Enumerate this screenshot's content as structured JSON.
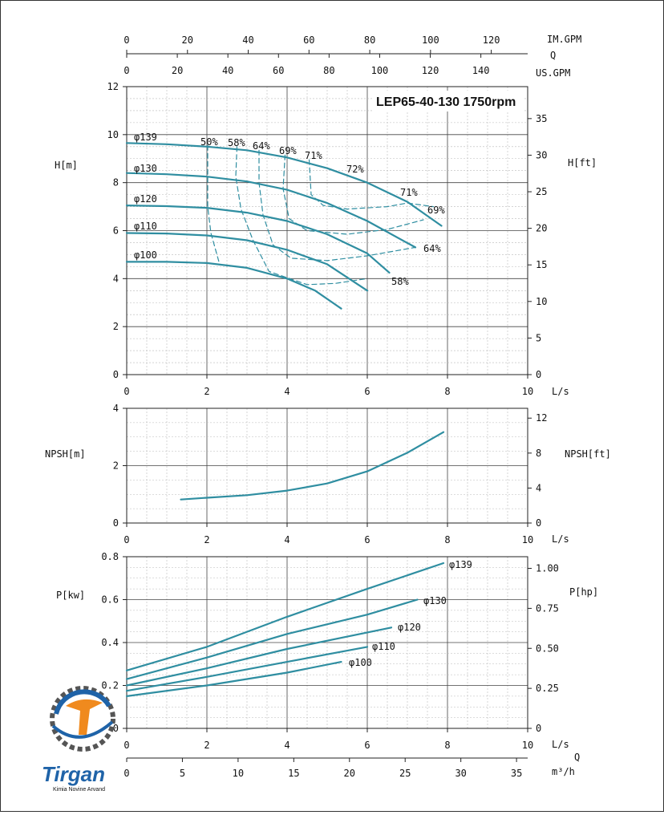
{
  "title": "LEP65-40-130 1750rpm",
  "colors": {
    "curve": "#2f8ea1",
    "logo_blue": "#1f63a8",
    "logo_orange": "#f08a1e"
  },
  "top_axes": {
    "im_gpm": {
      "label": "IM.GPM",
      "ticks": [
        "0",
        "20",
        "40",
        "60",
        "80",
        "100",
        "120"
      ]
    },
    "q_label": "Q",
    "us_gpm": {
      "label": "US.GPM",
      "ticks": [
        "0",
        "20",
        "40",
        "60",
        "80",
        "100",
        "120",
        "140"
      ]
    }
  },
  "ls_ticks": [
    "0",
    "2",
    "4",
    "6",
    "8",
    "10"
  ],
  "ls_label": "L/s",
  "m3h": {
    "label": "m³/h",
    "q_label": "Q",
    "ticks": [
      "0",
      "5",
      "10",
      "15",
      "20",
      "25",
      "30",
      "35"
    ]
  },
  "head_panel": {
    "ylabel_left": "H[m]",
    "ylabel_right": "H[ft]",
    "left_ticks": [
      "0",
      "2",
      "4",
      "6",
      "8",
      "10",
      "12"
    ],
    "right_ticks": [
      "0",
      "5",
      "10",
      "15",
      "20",
      "25",
      "30",
      "35"
    ],
    "impeller_labels": [
      "φ139",
      "φ130",
      "φ120",
      "φ110",
      "φ100"
    ],
    "efficiency_labels": [
      "50%",
      "58%",
      "64%",
      "69%",
      "71%",
      "72%",
      "71%",
      "69%",
      "64%",
      "58%"
    ]
  },
  "npsh_panel": {
    "ylabel_left": "NPSH[m]",
    "ylabel_right": "NPSH[ft]",
    "left_ticks": [
      "0",
      "2",
      "4"
    ],
    "right_ticks": [
      "0",
      "4",
      "8",
      "12"
    ]
  },
  "power_panel": {
    "ylabel_left": "P[kw]",
    "ylabel_right": "P[hp]",
    "left_ticks": [
      "0",
      "0.2",
      "0.4",
      "0.6",
      "0.8"
    ],
    "right_ticks": [
      "0",
      "0.25",
      "0.50",
      "0.75",
      "1.00"
    ],
    "impeller_labels": [
      "φ139",
      "φ130",
      "φ120",
      "φ110",
      "φ100"
    ]
  },
  "logo": {
    "name": "Tirgan",
    "tagline": "Kimia Novine Arvand"
  },
  "chart_data": [
    {
      "type": "line",
      "title": "LEP65-40-130 1750rpm",
      "xlabel": "L/s",
      "ylabel": "H[m]",
      "xlim": [
        0,
        10
      ],
      "ylim": [
        0,
        12
      ],
      "series": [
        {
          "name": "φ139",
          "x": [
            0,
            1,
            2,
            3,
            4,
            5,
            6,
            7,
            7.85
          ],
          "values": [
            9.65,
            9.6,
            9.5,
            9.35,
            9.05,
            8.6,
            8.0,
            7.2,
            6.2
          ]
        },
        {
          "name": "φ130",
          "x": [
            0,
            1,
            2,
            3,
            4,
            5,
            6,
            7.2
          ],
          "values": [
            8.4,
            8.35,
            8.25,
            8.05,
            7.7,
            7.15,
            6.4,
            5.3
          ]
        },
        {
          "name": "φ120",
          "x": [
            0,
            1,
            2,
            3,
            4,
            5,
            6,
            6.55
          ],
          "values": [
            7.05,
            7.02,
            6.95,
            6.75,
            6.4,
            5.85,
            5.05,
            4.25
          ]
        },
        {
          "name": "φ110",
          "x": [
            0,
            1,
            2,
            3,
            4,
            5,
            6
          ],
          "values": [
            5.9,
            5.88,
            5.8,
            5.6,
            5.2,
            4.6,
            3.5
          ]
        },
        {
          "name": "φ100",
          "x": [
            0,
            1,
            2,
            3,
            4,
            4.7,
            5.35
          ],
          "values": [
            4.7,
            4.7,
            4.65,
            4.45,
            4.0,
            3.5,
            2.75
          ]
        }
      ],
      "efficiency_lines": [
        {
          "label": "50%",
          "x": [
            2.02,
            2.02,
            2.1,
            2.3
          ],
          "y": [
            9.55,
            7.0,
            5.9,
            4.7
          ]
        },
        {
          "label": "58%",
          "x": [
            2.75,
            2.72,
            2.85,
            3.15,
            3.55,
            4.5,
            5.2,
            6.0
          ],
          "y": [
            9.5,
            8.25,
            6.9,
            5.6,
            4.3,
            3.75,
            3.8,
            4.0
          ]
        },
        {
          "label": "64%",
          "x": [
            3.3,
            3.3,
            3.4,
            3.65,
            4.1,
            5.0,
            6.0,
            7.2
          ],
          "y": [
            9.35,
            8.0,
            6.65,
            5.4,
            4.85,
            4.75,
            4.95,
            5.3
          ]
        },
        {
          "label": "69%",
          "x": [
            3.95,
            3.9,
            4.05,
            4.5,
            5.5,
            6.5,
            7.4
          ],
          "y": [
            9.15,
            7.75,
            6.5,
            6.0,
            5.85,
            6.05,
            6.45
          ]
        },
        {
          "label": "71%",
          "x": [
            4.55,
            4.6,
            4.9,
            5.5,
            6.5,
            7.0,
            7.65
          ],
          "y": [
            8.95,
            7.5,
            7.05,
            6.9,
            7.0,
            7.15,
            7.0
          ]
        }
      ]
    },
    {
      "type": "line",
      "xlabel": "L/s",
      "ylabel": "NPSH[m]",
      "xlim": [
        0,
        10
      ],
      "ylim": [
        0,
        4
      ],
      "series": [
        {
          "name": "NPSH",
          "x": [
            1.35,
            2,
            3,
            4,
            5,
            6,
            7,
            7.9
          ],
          "values": [
            0.82,
            0.88,
            0.97,
            1.13,
            1.38,
            1.8,
            2.45,
            3.17
          ]
        }
      ]
    },
    {
      "type": "line",
      "xlabel": "L/s",
      "ylabel": "P[kw]",
      "xlim": [
        0,
        10
      ],
      "ylim": [
        0,
        0.8
      ],
      "series": [
        {
          "name": "φ139",
          "x": [
            0,
            2,
            4,
            6,
            7.9
          ],
          "values": [
            0.27,
            0.38,
            0.52,
            0.65,
            0.77
          ]
        },
        {
          "name": "φ130",
          "x": [
            0,
            2,
            4,
            6,
            7.25
          ],
          "values": [
            0.23,
            0.33,
            0.44,
            0.53,
            0.6
          ]
        },
        {
          "name": "φ120",
          "x": [
            0,
            2,
            4,
            6.6
          ],
          "values": [
            0.2,
            0.28,
            0.37,
            0.47
          ]
        },
        {
          "name": "φ110",
          "x": [
            0,
            2,
            4,
            6
          ],
          "values": [
            0.175,
            0.24,
            0.31,
            0.38
          ]
        },
        {
          "name": "φ100",
          "x": [
            0,
            2,
            4,
            5.35
          ],
          "values": [
            0.15,
            0.2,
            0.26,
            0.31
          ]
        }
      ]
    }
  ]
}
